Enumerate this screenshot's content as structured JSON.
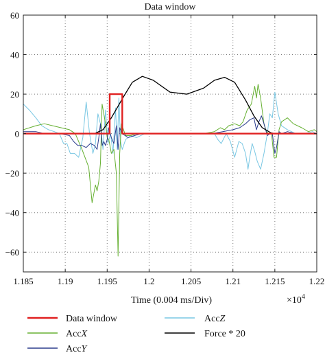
{
  "chart_data": {
    "type": "line",
    "title": "Data window",
    "xlabel": "Time (0.004 ms/Div)",
    "ylabel": "",
    "x_multiplier": "×10",
    "x_multiplier_exp": "4",
    "xlim": [
      1.185,
      1.22
    ],
    "ylim": [
      -70,
      60
    ],
    "xticks": [
      "1.185",
      "1.19",
      "1.195",
      "1.2",
      "1.205",
      "1.21",
      "1.215",
      "1.22"
    ],
    "yticks": [
      "60",
      "40",
      "20",
      "0",
      "−20",
      "−40",
      "−60"
    ],
    "grid": true,
    "legend_placement": "below",
    "series": [
      {
        "name": "Force * 20",
        "legend": [
          "Force * 20"
        ],
        "color": "#000000",
        "width": 1.3,
        "x": [
          1.185,
          1.1935,
          1.1945,
          1.1955,
          1.197,
          1.198,
          1.1992,
          1.2005,
          1.2025,
          1.2045,
          1.2065,
          1.2078,
          1.209,
          1.2102,
          1.2115,
          1.2125,
          1.2135,
          1.2145,
          1.215,
          1.22
        ],
        "y": [
          0,
          0,
          2,
          8,
          19,
          26,
          29,
          27,
          21,
          20,
          23,
          27,
          28.5,
          26,
          17,
          9,
          3,
          0.5,
          0,
          0
        ]
      },
      {
        "name": "AccX",
        "legend": [
          "Acc",
          "X"
        ],
        "color": "#66b032",
        "width": 1,
        "x": [
          1.185,
          1.1865,
          1.1875,
          1.1885,
          1.1895,
          1.1905,
          1.1912,
          1.192,
          1.1928,
          1.1932,
          1.1936,
          1.1938,
          1.194,
          1.1942,
          1.1944,
          1.1946,
          1.1948,
          1.195,
          1.1952,
          1.1955,
          1.1958,
          1.1961,
          1.1963,
          1.1965,
          1.1967,
          1.1972,
          1.1978,
          1.1985,
          1.1995,
          1.2005,
          1.2065,
          1.2078,
          1.2085,
          1.209,
          1.2095,
          1.2102,
          1.2108,
          1.2112,
          1.2117,
          1.2122,
          1.2126,
          1.2128,
          1.213,
          1.2133,
          1.2137,
          1.214,
          1.2143,
          1.2146,
          1.2149,
          1.2152,
          1.2155,
          1.2158,
          1.2165,
          1.2172,
          1.2182,
          1.219,
          1.2197,
          1.22
        ],
        "y": [
          2,
          4,
          5,
          4,
          3,
          2,
          0,
          -8,
          -17,
          -35,
          -26,
          -29,
          -24,
          -15,
          15,
          10,
          5,
          -2,
          -3,
          -10,
          -8,
          -20,
          -62,
          -10,
          5,
          -1,
          -1,
          0,
          0,
          0,
          0,
          1,
          3,
          2,
          4,
          5,
          4,
          6,
          12,
          15,
          24,
          18,
          25,
          18,
          5,
          1,
          0,
          0,
          -12,
          -12,
          2,
          6,
          8,
          5,
          3,
          1,
          2,
          1
        ]
      },
      {
        "name": "AccY",
        "legend": [
          "Acc",
          "Y"
        ],
        "color": "#2a3b8c",
        "width": 1,
        "x": [
          1.185,
          1.1865,
          1.1875,
          1.1885,
          1.1895,
          1.1905,
          1.191,
          1.1915,
          1.192,
          1.1925,
          1.193,
          1.1935,
          1.1938,
          1.194,
          1.1942,
          1.1944,
          1.1946,
          1.1948,
          1.195,
          1.1952,
          1.1955,
          1.1958,
          1.1961,
          1.1963,
          1.1965,
          1.1968,
          1.1975,
          1.199,
          1.2005,
          1.206,
          1.2075,
          1.2088,
          1.21,
          1.2108,
          1.2115,
          1.212,
          1.2125,
          1.2128,
          1.2131,
          1.2134,
          1.2137,
          1.2141,
          1.2144,
          1.2147,
          1.215,
          1.2152,
          1.2155,
          1.2158,
          1.2165,
          1.2175,
          1.2185,
          1.2195,
          1.22
        ],
        "y": [
          1,
          1,
          0,
          0,
          0,
          -1,
          -4,
          -6,
          -6,
          -7,
          -5,
          -6,
          -8,
          -2,
          5,
          -6,
          -4,
          -6,
          -3,
          3,
          -2,
          -5,
          4,
          -8,
          3,
          0,
          -2,
          0,
          0,
          0,
          0,
          1,
          2,
          3,
          5,
          7,
          8,
          2,
          6,
          9,
          5,
          -1,
          0,
          0,
          -10,
          -7,
          1,
          0,
          1,
          0,
          0,
          0,
          0
        ]
      },
      {
        "name": "AccZ",
        "legend": [
          "Acc",
          "Z"
        ],
        "color": "#79c7e3",
        "width": 1,
        "x": [
          1.185,
          1.1857,
          1.1865,
          1.1872,
          1.188,
          1.1887,
          1.1893,
          1.1898,
          1.1902,
          1.1906,
          1.1911,
          1.1916,
          1.1921,
          1.1925,
          1.1929,
          1.1933,
          1.1936,
          1.1939,
          1.1942,
          1.1945,
          1.1948,
          1.1951,
          1.1954,
          1.1957,
          1.196,
          1.1962,
          1.1964,
          1.1966,
          1.1968,
          1.1972,
          1.1978,
          1.1985,
          1.1995,
          1.2005,
          1.2065,
          1.2078,
          1.2082,
          1.2086,
          1.2092,
          1.2097,
          1.2102,
          1.2107,
          1.2111,
          1.2115,
          1.2118,
          1.212,
          1.2123,
          1.2126,
          1.2129,
          1.2133,
          1.2137,
          1.2141,
          1.2144,
          1.2147,
          1.215,
          1.2154,
          1.2158,
          1.2165,
          1.2175,
          1.2185,
          1.2195,
          1.22
        ],
        "y": [
          15,
          12,
          8,
          4,
          2,
          1,
          0,
          -5,
          -5,
          -10,
          -10,
          -12,
          -2,
          16,
          0,
          -10,
          -5,
          10,
          5,
          -8,
          12,
          -5,
          0,
          -10,
          13,
          -8,
          18,
          -4,
          -8,
          -3,
          -1,
          -2,
          0,
          0,
          0,
          0,
          -3,
          -5,
          0,
          -4,
          -12,
          -4,
          -5,
          -10,
          -18,
          -12,
          -5,
          -9,
          -14,
          -18,
          -10,
          0,
          10,
          8,
          21,
          10,
          4,
          2,
          0,
          0,
          1,
          0
        ]
      },
      {
        "name": "Data window",
        "legend": [
          "Data window"
        ],
        "color": "#e02020",
        "width": 2.4,
        "x": [
          1.185,
          1.1953,
          1.1953,
          1.1968,
          1.1968,
          1.22
        ],
        "y": [
          0,
          0,
          20,
          20,
          0,
          0
        ]
      }
    ],
    "legend_order": [
      "Data window",
      "AccX",
      "AccY",
      "AccZ",
      "Force * 20"
    ]
  }
}
